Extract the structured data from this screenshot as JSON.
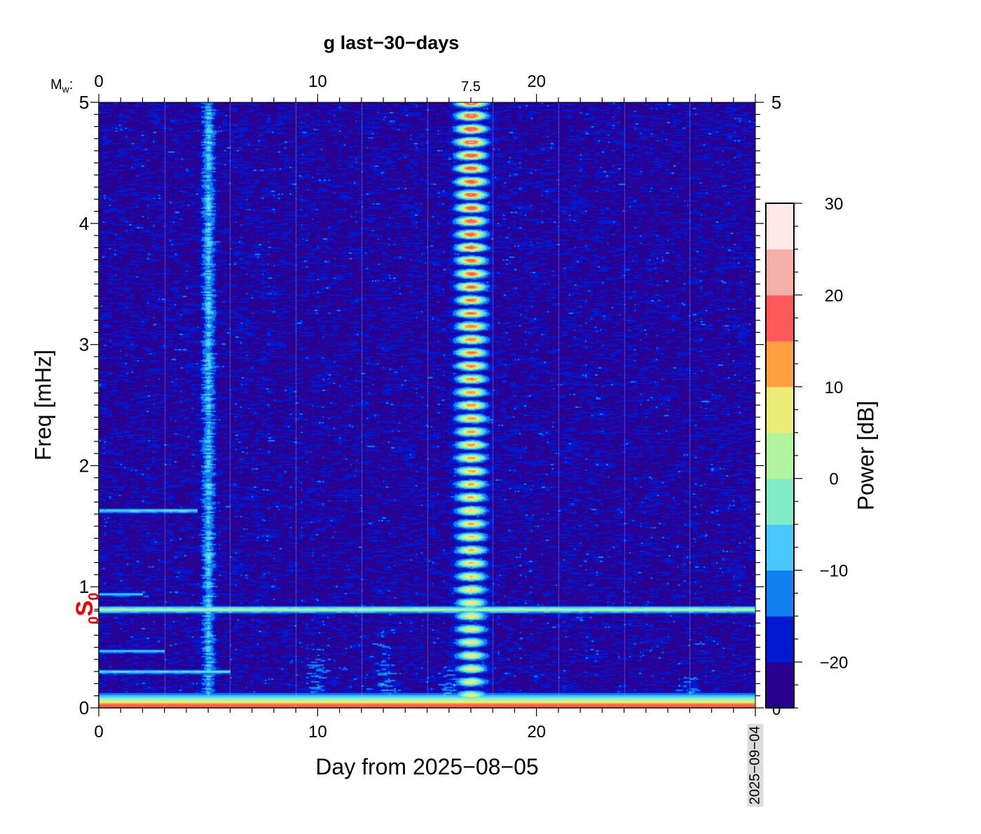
{
  "chart_data": {
    "type": "heatmap",
    "title": "g last−30−days",
    "xlabel": "Day from 2025−08−05",
    "ylabel": "Freq [mHz]",
    "xlim": [
      0,
      30
    ],
    "ylim": [
      0,
      5
    ],
    "x_ticks": [
      "0",
      "10",
      "20"
    ],
    "y_ticks": [
      "0",
      "1",
      "2",
      "3",
      "4",
      "5"
    ],
    "right_y_ticks": [
      "5"
    ],
    "top_axis": {
      "label": "M",
      "label_sub": "w",
      "label_suffix": ":",
      "ticks": [
        "0",
        "10",
        "20"
      ],
      "events": [
        {
          "day": 17,
          "magnitude": "7.5"
        }
      ]
    },
    "end_date_label": "2025−09−04",
    "mode_annotation": {
      "prefix": "0",
      "main": "S",
      "sub": "0",
      "freq_mhz": 0.814,
      "color": "#ee0000"
    },
    "colorbar": {
      "label": "Power [dB]",
      "range": [
        -25,
        30
      ],
      "ticks": [
        "30",
        "20",
        "10",
        "0",
        "−10",
        "−20"
      ],
      "bottom_label": "0",
      "levels": [
        -25,
        -20,
        -15,
        -10,
        -5,
        0,
        5,
        10,
        15,
        20,
        25,
        30
      ],
      "colors": [
        "#2a0090",
        "#0018d0",
        "#1080f0",
        "#48c8ff",
        "#80ecc8",
        "#b0f4a0",
        "#ecec78",
        "#ffa040",
        "#ff5a5a",
        "#f4b0a8",
        "#ffe8e8"
      ]
    },
    "background_db": -22,
    "vertical_features": [
      {
        "day": 5,
        "peak_db": -8
      },
      {
        "day": 10,
        "peak_db": -5,
        "max_freq_mhz": 0.6
      },
      {
        "day": 13,
        "peak_db": -8,
        "max_freq_mhz": 0.8
      },
      {
        "day": 16,
        "peak_db": 0,
        "max_freq_mhz": 0.4
      },
      {
        "day": 17,
        "peak_db": 22
      },
      {
        "day": 27,
        "peak_db": 0,
        "max_freq_mhz": 0.3
      }
    ],
    "horizontal_features": [
      {
        "freq_mhz": 0.814,
        "peak_db": 5,
        "days": [
          0,
          30
        ]
      },
      {
        "freq_mhz": 0.94,
        "peak_db": -5,
        "days": [
          0,
          2
        ]
      },
      {
        "freq_mhz": 1.63,
        "peak_db": -3,
        "days": [
          0,
          4.5
        ]
      },
      {
        "freq_mhz": 0.47,
        "peak_db": -5,
        "days": [
          0,
          3
        ]
      },
      {
        "freq_mhz": 0.3,
        "peak_db": -3,
        "days": [
          0,
          6
        ]
      },
      {
        "freq_mhz": 0.02,
        "peak_db": 18,
        "days": [
          0,
          30
        ]
      }
    ]
  }
}
